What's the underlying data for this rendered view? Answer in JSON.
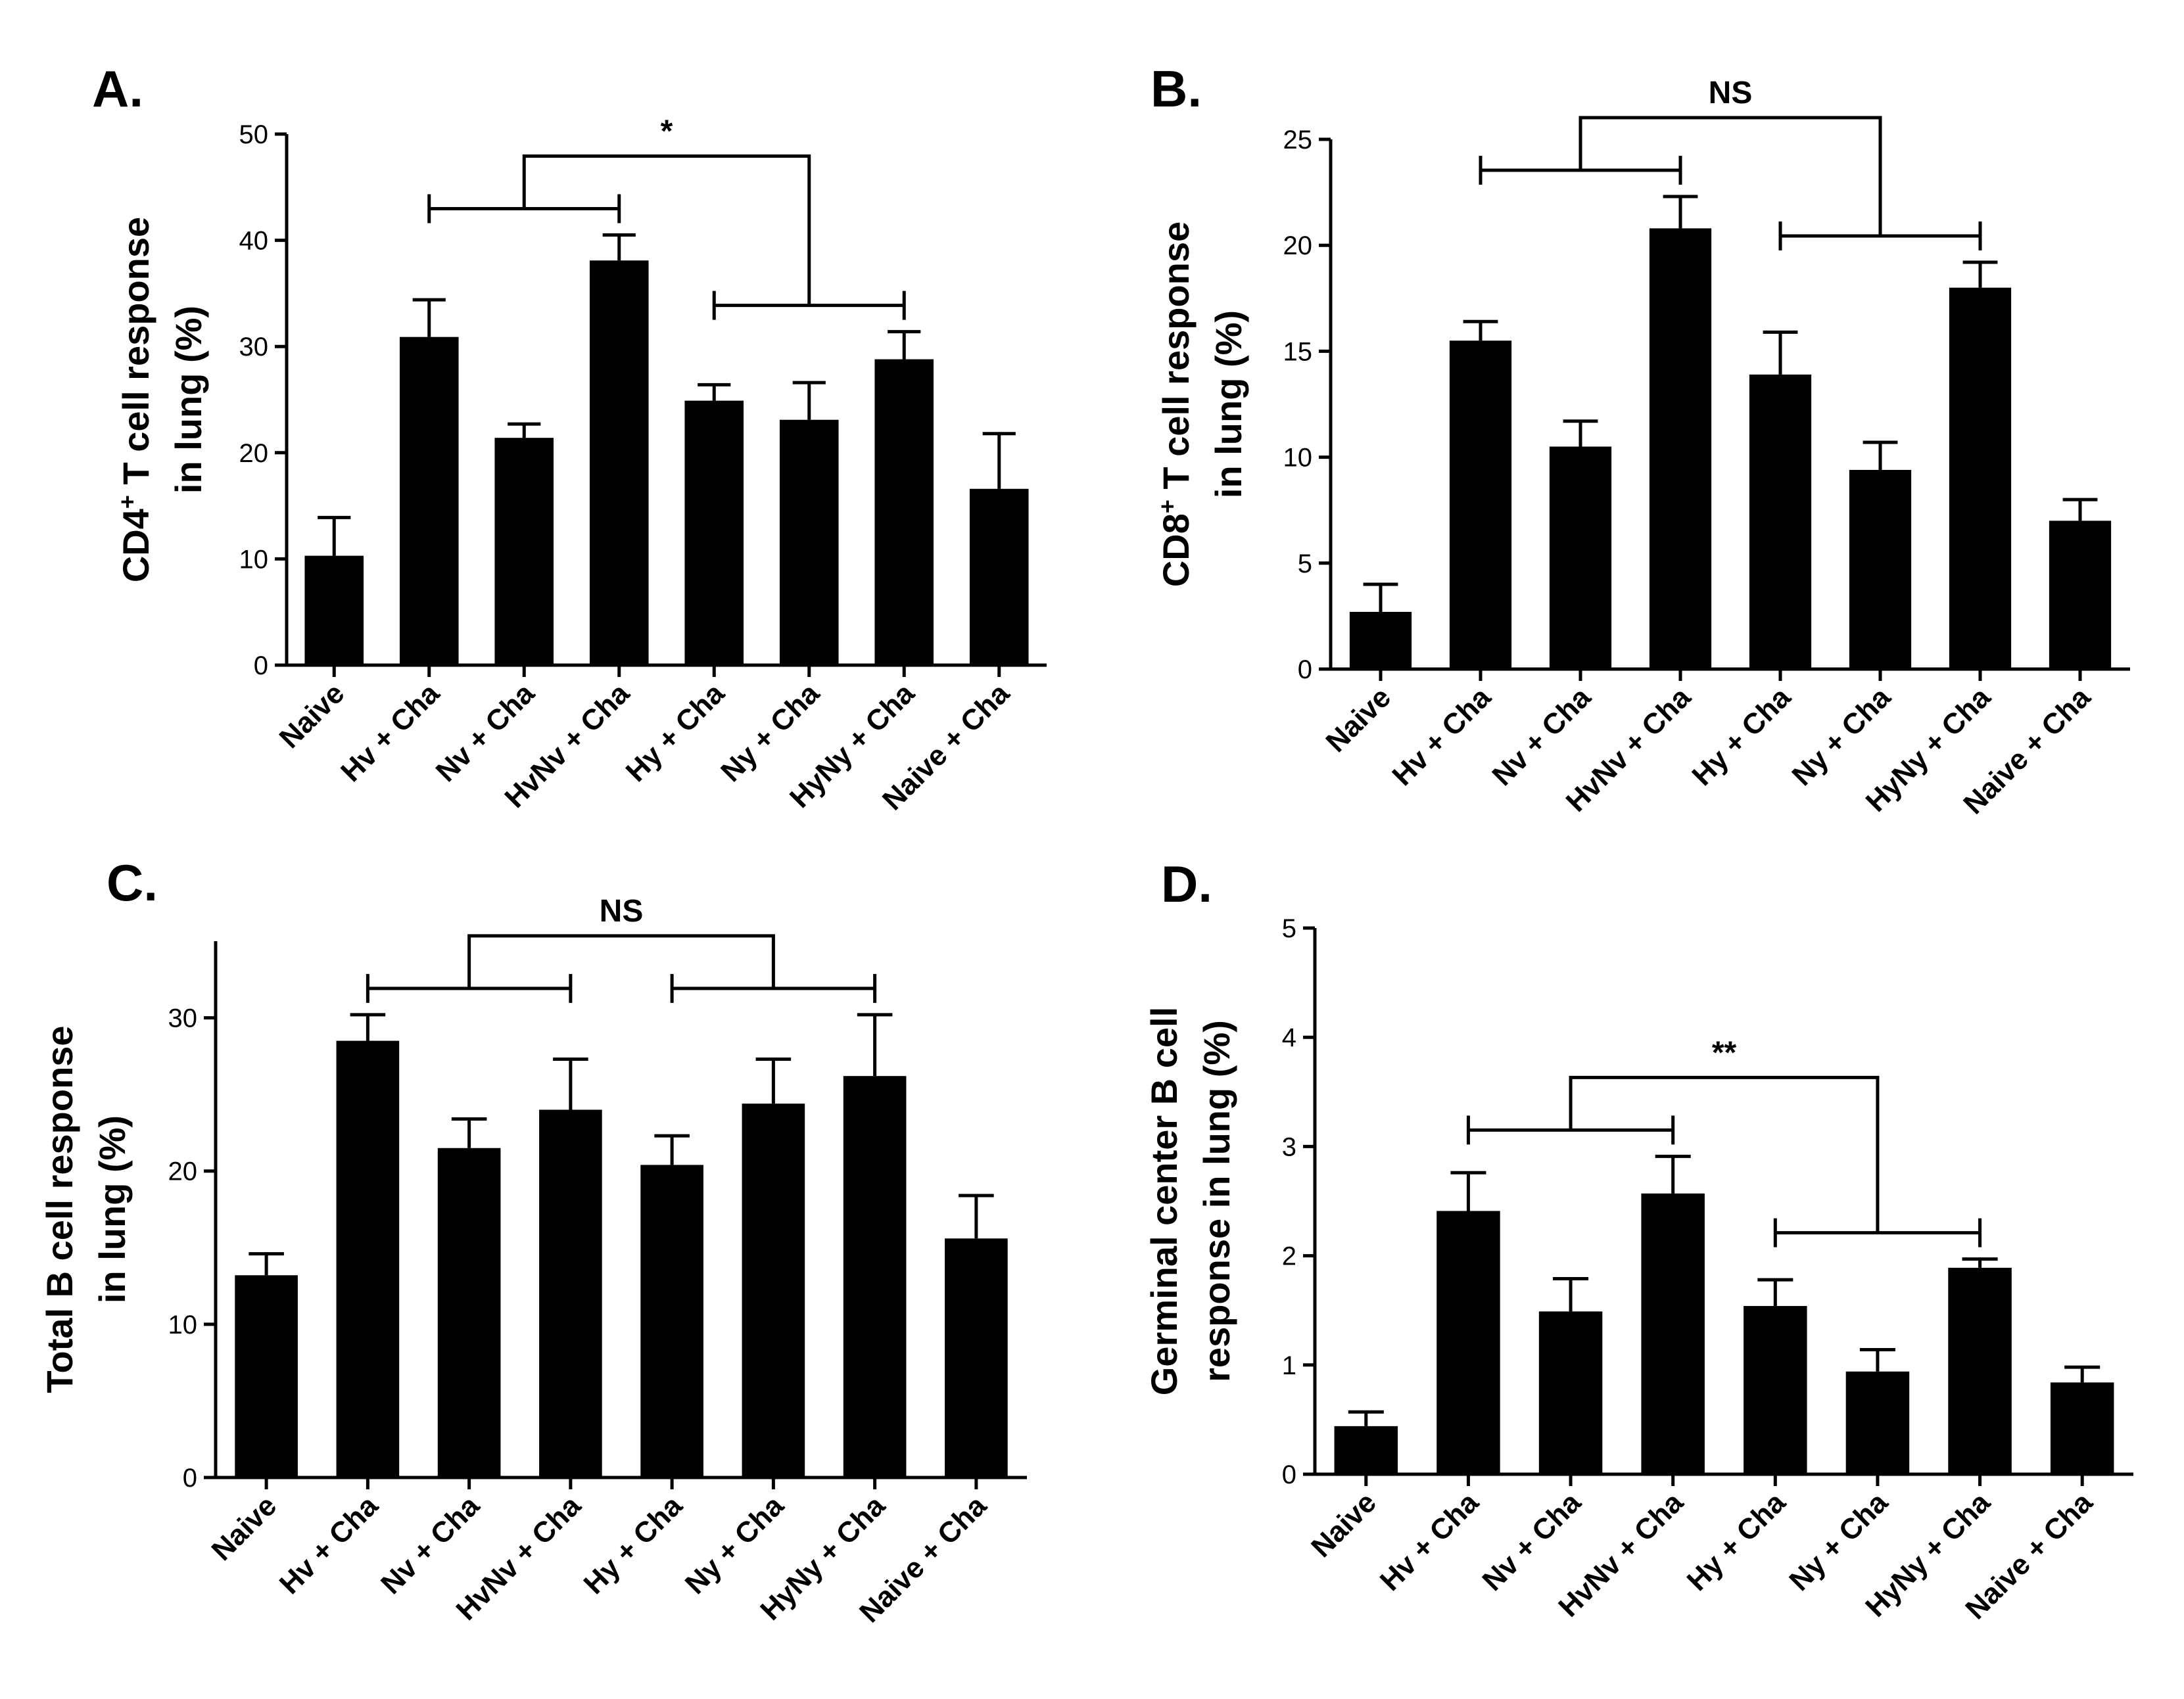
{
  "chart_data": [
    {
      "panel_label": "A.",
      "type": "bar",
      "ylabel_parts": [
        "CD4",
        "+",
        " T cell response"
      ],
      "ylabel_line2": "in lung (%)",
      "ylim": [
        0,
        50
      ],
      "yticks": [
        0,
        10,
        20,
        30,
        40,
        50
      ],
      "categories": [
        "Naive",
        "Hv + Cha",
        "Nv + Cha",
        "HvNv + Cha",
        "Hy + Cha",
        "Ny + Cha",
        "HyNy + Cha",
        "Naive + Cha"
      ],
      "values": [
        10.3,
        30.9,
        21.4,
        38.1,
        24.9,
        23.1,
        28.8,
        16.6
      ],
      "errors": [
        3.6,
        3.5,
        1.3,
        2.4,
        1.5,
        3.5,
        2.6,
        5.2
      ],
      "significance": {
        "label": "*",
        "left_group": [
          1,
          3
        ],
        "right_group": [
          4,
          6
        ]
      }
    },
    {
      "panel_label": "B.",
      "type": "bar",
      "ylabel_parts": [
        "CD8",
        "+",
        " T cell response"
      ],
      "ylabel_line2": "in lung (%)",
      "ylim": [
        0,
        25
      ],
      "yticks": [
        0,
        5,
        10,
        15,
        20,
        25
      ],
      "categories": [
        "Naive",
        "Hv + Cha",
        "Nv + Cha",
        "HvNv + Cha",
        "Hy + Cha",
        "Ny + Cha",
        "HyNy + Cha",
        "Naive + Cha"
      ],
      "values": [
        2.7,
        15.5,
        10.5,
        20.8,
        13.9,
        9.4,
        18.0,
        7.0
      ],
      "errors": [
        1.3,
        0.9,
        1.2,
        1.5,
        2.0,
        1.3,
        1.2,
        1.0
      ],
      "significance": {
        "label": "NS",
        "left_group": [
          1,
          3
        ],
        "right_group": [
          4,
          6
        ]
      }
    },
    {
      "panel_label": "C.",
      "type": "bar",
      "ylabel_parts": [
        "Total B cell response"
      ],
      "ylabel_line2": "in lung (%)",
      "ylim": [
        0,
        35
      ],
      "yticks": [
        0,
        10,
        20,
        30
      ],
      "categories": [
        "Naive",
        "Hv + Cha",
        "Nv + Cha",
        "HvNv + Cha",
        "Hy + Cha",
        "Ny + Cha",
        "HyNy + Cha",
        "Naive + Cha"
      ],
      "values": [
        13.2,
        28.5,
        21.5,
        24.0,
        20.4,
        24.4,
        26.2,
        15.6
      ],
      "errors": [
        1.4,
        1.7,
        1.9,
        3.3,
        1.9,
        2.9,
        4.0,
        2.8
      ],
      "significance": {
        "label": "NS",
        "left_group": [
          1,
          3
        ],
        "right_group": [
          4,
          6
        ]
      }
    },
    {
      "panel_label": "D.",
      "type": "bar",
      "ylabel_parts": [
        "Germinal center B cell"
      ],
      "ylabel_line2": "response in lung (%)",
      "ylim": [
        0,
        5
      ],
      "yticks": [
        0,
        1,
        2,
        3,
        4,
        5
      ],
      "categories": [
        "Naive",
        "Hv + Cha",
        "Nv + Cha",
        "HvNv + Cha",
        "Hy + Cha",
        "Ny + Cha",
        "HyNy + Cha",
        "Naive + Cha"
      ],
      "values": [
        0.44,
        2.41,
        1.49,
        2.57,
        1.54,
        0.94,
        1.89,
        0.84
      ],
      "errors": [
        0.13,
        0.35,
        0.3,
        0.34,
        0.24,
        0.2,
        0.08,
        0.14
      ],
      "significance": {
        "label": "**",
        "left_group": [
          1,
          3
        ],
        "right_group": [
          4,
          6
        ]
      }
    }
  ]
}
